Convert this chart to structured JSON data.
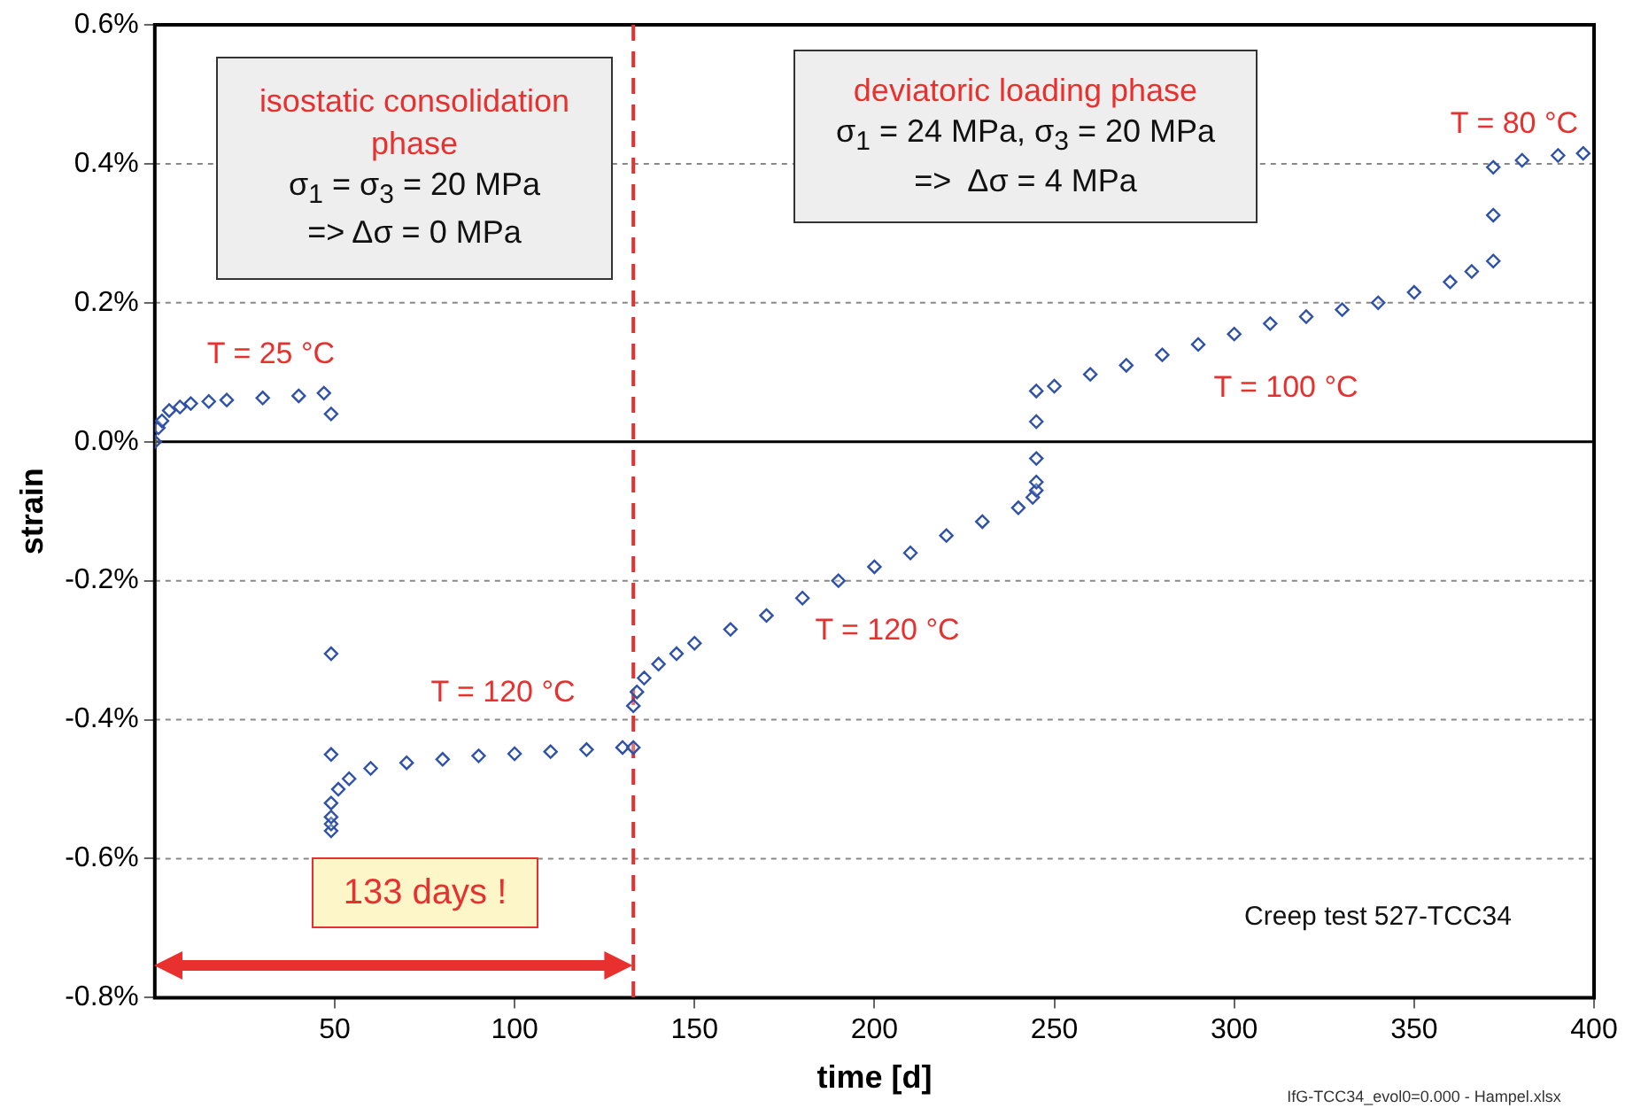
{
  "chart_data": {
    "type": "scatter",
    "xlabel": "time [d]",
    "ylabel": "strain",
    "xlim": [
      0,
      400
    ],
    "xticks": [
      50,
      100,
      150,
      200,
      250,
      300,
      350,
      400
    ],
    "ylim": [
      -0.8,
      0.6
    ],
    "yticks": [
      {
        "value": -0.8,
        "label": "-0.8%"
      },
      {
        "value": -0.6,
        "label": "-0.6%"
      },
      {
        "value": -0.4,
        "label": "-0.4%"
      },
      {
        "value": -0.2,
        "label": "-0.2%"
      },
      {
        "value": 0,
        "label": "0.0%"
      },
      {
        "value": 0.2,
        "label": "0.2%"
      },
      {
        "value": 0.4,
        "label": "0.4%"
      },
      {
        "value": 0.6,
        "label": "0.6%"
      }
    ],
    "grid": "y",
    "marker": "diamond",
    "legend": false,
    "series": [
      {
        "color": "#2f52a8",
        "x": [
          0,
          1,
          2,
          4,
          7,
          10,
          15,
          20,
          30,
          40,
          47,
          49,
          49,
          49,
          49,
          49,
          49,
          49,
          51,
          54,
          60,
          70,
          80,
          90,
          100,
          110,
          120,
          130,
          133,
          133,
          134,
          136,
          140,
          145,
          150,
          160,
          170,
          180,
          190,
          200,
          210,
          220,
          230,
          240,
          244,
          245,
          245,
          245,
          245,
          245,
          250,
          260,
          270,
          280,
          290,
          300,
          310,
          320,
          330,
          340,
          350,
          360,
          366,
          372,
          372,
          372,
          380,
          390,
          397
        ],
        "values": [
          0,
          0.02,
          0.03,
          0.045,
          0.05,
          0.055,
          0.058,
          0.06,
          0.063,
          0.066,
          0.07,
          0.04,
          -0.305,
          -0.45,
          -0.56,
          -0.55,
          -0.54,
          -0.52,
          -0.5,
          -0.485,
          -0.47,
          -0.462,
          -0.457,
          -0.452,
          -0.449,
          -0.446,
          -0.443,
          -0.44,
          -0.44,
          -0.38,
          -0.36,
          -0.34,
          -0.32,
          -0.305,
          -0.29,
          -0.27,
          -0.25,
          -0.225,
          -0.2,
          -0.18,
          -0.16,
          -0.135,
          -0.115,
          -0.095,
          -0.08,
          -0.07,
          -0.058,
          -0.024,
          0.029,
          0.073,
          0.08,
          0.097,
          0.11,
          0.125,
          0.14,
          0.155,
          0.17,
          0.18,
          0.19,
          0.2,
          0.215,
          0.23,
          0.245,
          0.26,
          0.326,
          0.395,
          0.405,
          0.412,
          0.415
        ]
      }
    ],
    "ref_lines": [
      {
        "axis": "x",
        "value": 133,
        "color": "#e8312f",
        "line_style": "dashed"
      }
    ],
    "annotations": [
      "isostatic consolidation phase",
      "σ$_{1}$ = σ$_{3}$ = 20 MPa",
      "=> Δσ = 0 MPa",
      "deviatoric loading phase",
      "σ$_{1}$ = 24 MPa, σ$_{3}$ = 20 MPa",
      "=>  Δσ = 4 MPa",
      "133 days !",
      "Creep test 527-TCC34",
      "IfG-TCC34_evol0=0.000 - Hampel.xlsx",
      "T = 25 °C",
      "T = 120 °C",
      "T = 120 °C",
      "T = 100 °C",
      "T = 80 °C"
    ]
  }
}
